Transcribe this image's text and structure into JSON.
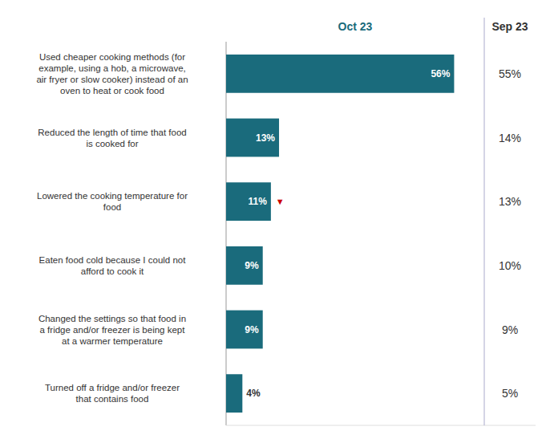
{
  "chart_data": {
    "type": "bar",
    "orientation": "horizontal",
    "categories": [
      "Used cheaper cooking methods (for\nexample, using a hob, a microwave,\nair fryer or slow cooker) instead of an\noven to heat or cook food",
      "Reduced the length of time that food\nis cooked for",
      "Lowered the cooking temperature for\nfood",
      "Eaten food cold because I could not\nafford to cook it",
      "Changed the settings so that food in\na fridge and/or freezer is being kept\nat a warmer temperature",
      "Turned off a fridge and/or freezer\nthat contains food"
    ],
    "series": [
      {
        "name": "Oct 23",
        "type": "bar",
        "color": "#1a6b7c",
        "values": [
          56,
          13,
          11,
          9,
          9,
          4
        ],
        "value_labels": [
          "56%",
          "13%",
          "11%",
          "9%",
          "9%",
          "4%"
        ]
      },
      {
        "name": "Sep 23",
        "type": "label",
        "color": "#333333",
        "values": [
          55,
          14,
          13,
          10,
          9,
          5
        ],
        "value_labels": [
          "55%",
          "14%",
          "13%",
          "10%",
          "9%",
          "5%"
        ]
      }
    ],
    "annotations": [
      {
        "text": "▼",
        "category": "Lowered the cooking temperature for\nfood",
        "color": "#cc0000"
      }
    ],
    "xlim": [
      0,
      76
    ],
    "data_labels": true,
    "tick_labels": "y",
    "grid": false
  }
}
